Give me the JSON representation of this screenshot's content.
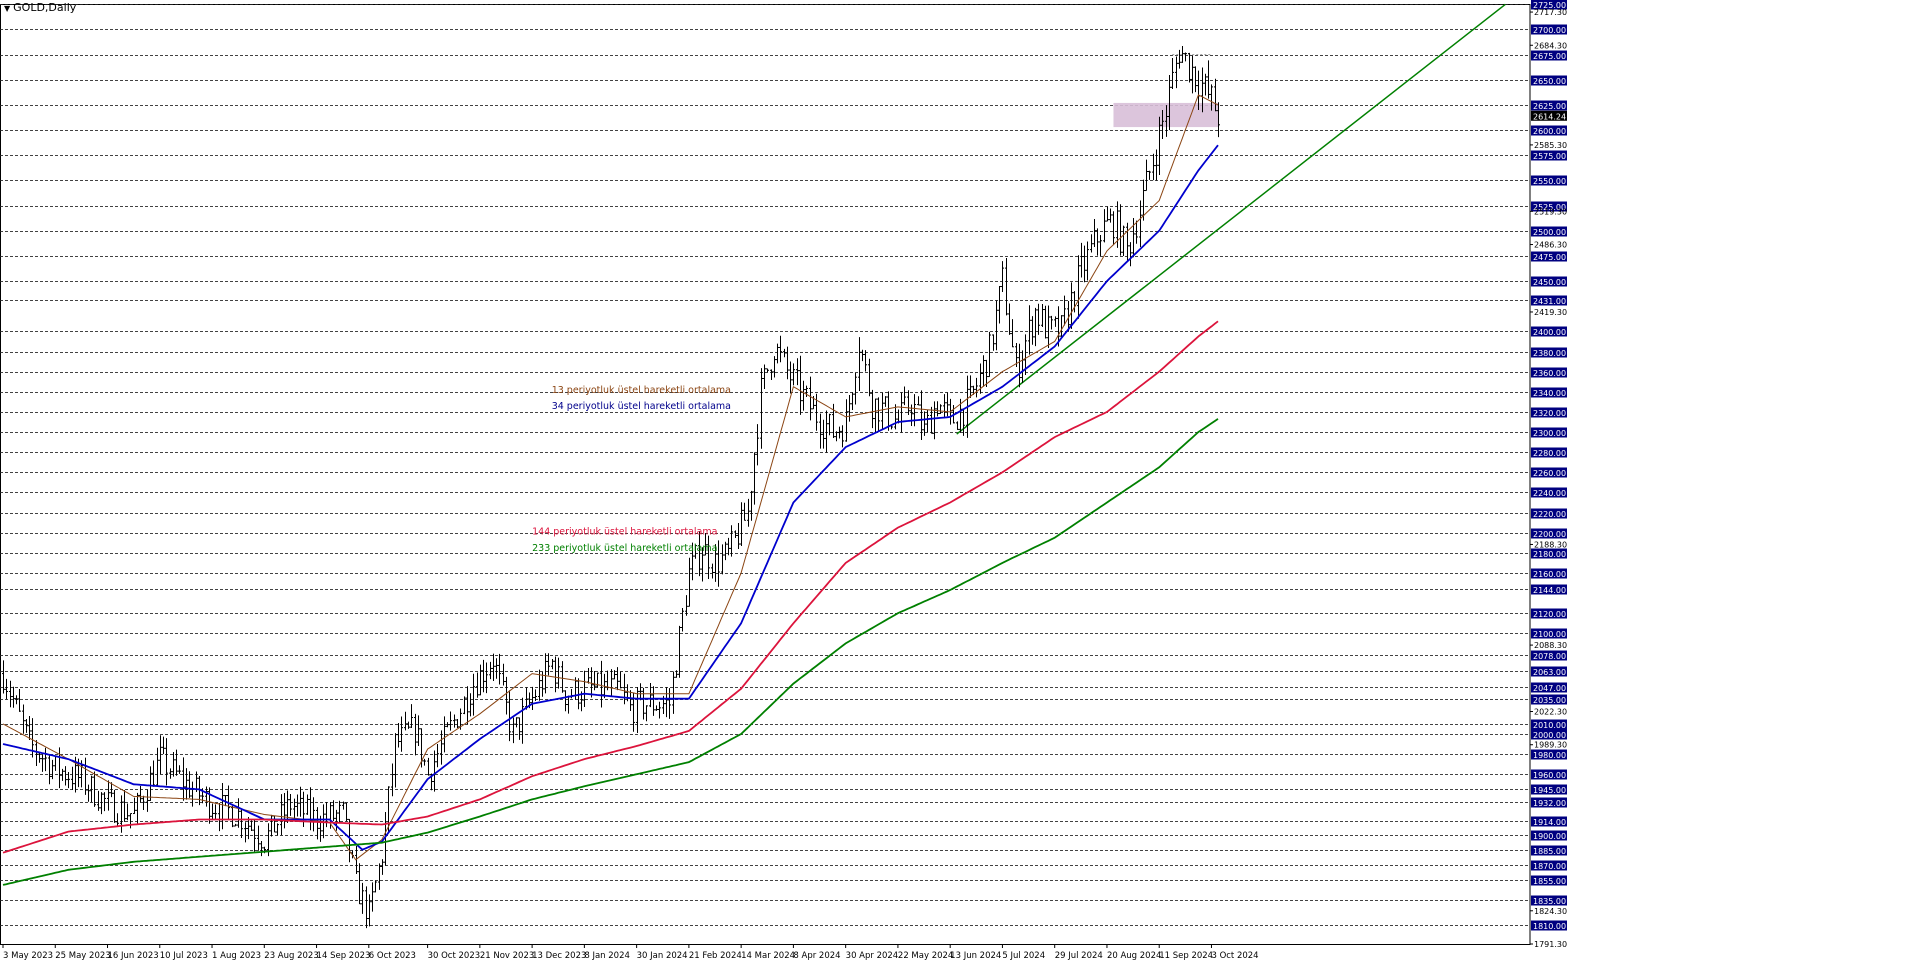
{
  "chart_data": {
    "type": "line",
    "title": "GOLD,Daily",
    "x_tick_labels": [
      "3 May 2023",
      "25 May 2023",
      "16 Jun 2023",
      "10 Jul 2023",
      "1 Aug 2023",
      "23 Aug 2023",
      "14 Sep 2023",
      "6 Oct 2023",
      "30 Oct 2023",
      "21 Nov 2023",
      "13 Dec 2023",
      "8 Jan 2024",
      "30 Jan 2024",
      "21 Feb 2024",
      "14 Mar 2024",
      "8 Apr 2024",
      "30 Apr 2024",
      "22 May 2024",
      "13 Jun 2024",
      "5 Jul 2024",
      "29 Jul 2024",
      "20 Aug 2024",
      "11 Sep 2024",
      "3 Oct 2024"
    ],
    "x_tick_index": [
      0,
      16,
      32,
      48,
      64,
      80,
      96,
      112,
      130,
      146,
      162,
      178,
      194,
      210,
      226,
      242,
      258,
      274,
      290,
      306,
      322,
      338,
      354,
      370
    ],
    "total_bars": 380,
    "ylim": [
      1791.3,
      2725.3
    ],
    "y_levels": [
      1810.0,
      1835.0,
      1855.0,
      1870.0,
      1885.0,
      1900.0,
      1914.0,
      1932.0,
      1945.0,
      1960.0,
      1980.0,
      2000.0,
      2010.0,
      2035.0,
      2047.0,
      2063.0,
      2078.0,
      2100.0,
      2120.0,
      2144.0,
      2160.0,
      2180.0,
      2200.0,
      2220.0,
      2240.0,
      2260.0,
      2280.0,
      2300.0,
      2320.0,
      2340.0,
      2360.0,
      2380.0,
      2400.0,
      2431.0,
      2450.0,
      2475.0,
      2500.0,
      2525.0,
      2550.0,
      2575.0,
      2600.0,
      2625.0,
      2650.0,
      2675.0,
      2700.0,
      2725.0
    ],
    "y_ticks_extra": [
      "1791.30",
      "1824.30",
      "1989.30",
      "2022.30",
      "2088.30",
      "2188.30",
      "2419.30",
      "2486.30",
      "2519.30",
      "2585.30",
      "2684.30",
      "2717.30"
    ],
    "current_price": "2614.24",
    "series": [
      {
        "name": "13 periyotluk üstel hareketli ortalama",
        "color": "#8b4513",
        "x": [
          0,
          20,
          40,
          60,
          80,
          100,
          108,
          116,
          130,
          146,
          162,
          178,
          194,
          210,
          226,
          242,
          258,
          274,
          290,
          306,
          322,
          338,
          354,
          366,
          372
        ],
        "values": [
          2010,
          1975,
          1938,
          1935,
          1920,
          1912,
          1875,
          1895,
          1985,
          2020,
          2060,
          2052,
          2040,
          2040,
          2160,
          2345,
          2315,
          2325,
          2320,
          2360,
          2390,
          2480,
          2530,
          2635,
          2625
        ]
      },
      {
        "name": "34 periyotluk üstel hareketli ortalama",
        "color": "#0000cd",
        "x": [
          0,
          20,
          40,
          60,
          80,
          100,
          110,
          116,
          130,
          146,
          162,
          178,
          194,
          210,
          226,
          242,
          258,
          274,
          290,
          306,
          322,
          338,
          354,
          366,
          372
        ],
        "values": [
          1990,
          1975,
          1950,
          1945,
          1915,
          1915,
          1885,
          1893,
          1955,
          1995,
          2030,
          2040,
          2035,
          2035,
          2110,
          2230,
          2285,
          2310,
          2315,
          2345,
          2385,
          2450,
          2500,
          2560,
          2585
        ]
      },
      {
        "name": "144 periyotluk üstel hareketli ortalama",
        "color": "#dc143c",
        "x": [
          0,
          20,
          40,
          60,
          80,
          100,
          116,
          130,
          146,
          162,
          178,
          194,
          210,
          226,
          242,
          258,
          274,
          290,
          306,
          322,
          338,
          354,
          366,
          372
        ],
        "values": [
          1882,
          1903,
          1910,
          1915,
          1915,
          1912,
          1910,
          1918,
          1935,
          1958,
          1975,
          1988,
          2003,
          2045,
          2110,
          2170,
          2205,
          2230,
          2260,
          2295,
          2320,
          2360,
          2395,
          2410
        ]
      },
      {
        "name": "233 periyotluk üstel hareketli ortalama",
        "color": "#008000",
        "x": [
          0,
          20,
          40,
          60,
          80,
          100,
          116,
          130,
          146,
          162,
          178,
          194,
          210,
          226,
          242,
          258,
          274,
          290,
          306,
          322,
          338,
          354,
          366,
          372
        ],
        "values": [
          1850,
          1865,
          1873,
          1878,
          1883,
          1888,
          1892,
          1902,
          1918,
          1935,
          1948,
          1960,
          1972,
          2000,
          2050,
          2090,
          2120,
          2143,
          2170,
          2195,
          2230,
          2265,
          2300,
          2313
        ]
      }
    ],
    "trendline": {
      "x": [
        292,
        460
      ],
      "values": [
        2298,
        2725
      ],
      "color": "#008000"
    },
    "resistance_zone": {
      "x": [
        340,
        372
      ],
      "values": [
        2603,
        2627
      ],
      "color": "#d8bfd8"
    },
    "peak_dotted_line": {
      "x": [
        358,
        370
      ],
      "value": 2675
    },
    "annotations": [
      {
        "text": "13 periyotluk üstel hareketli ortalama",
        "color": "#8b4513",
        "x": 168,
        "value": 2339
      },
      {
        "text": "34 periyotluk üstel hareketli ortalama",
        "color": "#00008b",
        "x": 168,
        "value": 2323
      },
      {
        "text": "144 periyotluk üstel hareketli ortalama",
        "color": "#dc143c",
        "x": 162,
        "value": 2198
      },
      {
        "text": "233 periyotluk üstel hareketli ortalama",
        "color": "#008000",
        "x": 162,
        "value": 2182
      }
    ],
    "price_path": {
      "x": [
        0,
        8,
        16,
        24,
        32,
        40,
        48,
        56,
        64,
        72,
        80,
        88,
        96,
        104,
        108,
        112,
        116,
        120,
        126,
        130,
        136,
        144,
        150,
        156,
        162,
        168,
        172,
        180,
        188,
        192,
        196,
        200,
        204,
        210,
        214,
        218,
        222,
        228,
        232,
        236,
        240,
        244,
        248,
        254,
        258,
        262,
        266,
        270,
        274,
        278,
        282,
        286,
        290,
        296,
        302,
        306,
        310,
        316,
        320,
        324,
        330,
        336,
        340,
        344,
        348,
        352,
        356,
        360,
        364,
        366,
        370,
        372
      ],
      "values": [
        2060,
        1990,
        1965,
        1955,
        1930,
        1920,
        1975,
        1950,
        1930,
        1920,
        1895,
        1930,
        1915,
        1920,
        1850,
        1820,
        1880,
        1990,
        2005,
        1960,
        2000,
        2050,
        2075,
        2000,
        2035,
        2070,
        2040,
        2045,
        2045,
        2025,
        2030,
        2030,
        2030,
        2160,
        2185,
        2170,
        2178,
        2220,
        2340,
        2385,
        2360,
        2340,
        2320,
        2300,
        2310,
        2390,
        2330,
        2320,
        2310,
        2330,
        2300,
        2330,
        2310,
        2330,
        2380,
        2450,
        2360,
        2420,
        2400,
        2400,
        2460,
        2500,
        2510,
        2480,
        2520,
        2570,
        2620,
        2680,
        2660,
        2650,
        2630,
        2615
      ]
    }
  }
}
